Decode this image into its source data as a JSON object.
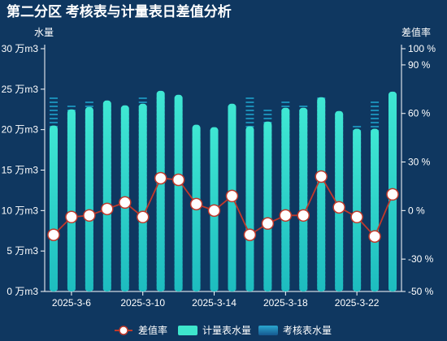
{
  "chart_data": {
    "type": "bar",
    "title": "第二分区 考核表与计量表日差值分析",
    "ylabel_left": "水量",
    "ylabel_right": "差值率",
    "y_left_ticks": [
      "0 万m3",
      "5 万m3",
      "10 万m3",
      "15 万m3",
      "20 万m3",
      "25 万m3",
      "30 万m3"
    ],
    "y_left_range": [
      0,
      30
    ],
    "y_right_ticks": [
      "-50 %",
      "-30 %",
      "0 %",
      "30 %",
      "60 %",
      "90 %",
      "100 %"
    ],
    "y_right_values": [
      -50,
      -30,
      0,
      30,
      60,
      90,
      100
    ],
    "y_right_range": [
      -50,
      100
    ],
    "x_tick_labels": [
      "2025-3-6",
      "2025-3-10",
      "2025-3-14",
      "2025-3-18",
      "2025-3-22"
    ],
    "x_tick_indices": [
      1,
      5,
      9,
      13,
      17
    ],
    "categories": [
      "2025-3-5",
      "2025-3-6",
      "2025-3-7",
      "2025-3-8",
      "2025-3-9",
      "2025-3-10",
      "2025-3-11",
      "2025-3-12",
      "2025-3-13",
      "2025-3-14",
      "2025-3-15",
      "2025-3-16",
      "2025-3-17",
      "2025-3-18",
      "2025-3-19",
      "2025-3-20",
      "2025-3-21",
      "2025-3-22",
      "2025-3-23",
      "2025-3-24"
    ],
    "series": [
      {
        "name": "差值率",
        "type": "line",
        "axis": "right",
        "values": [
          -15,
          -4,
          -3,
          1,
          5,
          -4,
          20,
          19,
          4,
          0,
          9,
          -15,
          -8,
          -3,
          -3,
          21,
          2,
          -4,
          -16,
          10
        ]
      },
      {
        "name": "计量表水量",
        "type": "bar",
        "axis": "left",
        "values": [
          20.5,
          22.5,
          22.8,
          23.6,
          23.0,
          23.2,
          24.8,
          24.3,
          20.6,
          20.3,
          23.2,
          20.4,
          21.0,
          22.7,
          22.7,
          24.0,
          22.3,
          20.1,
          20.1,
          24.7
        ]
      },
      {
        "name": "考核表水量",
        "type": "bar",
        "axis": "left",
        "values": [
          24.2,
          23.0,
          23.5,
          22.8,
          22.0,
          24.2,
          24.2,
          23.0,
          20.1,
          20.0,
          22.5,
          24.2,
          22.5,
          23.5,
          23.0,
          24.0,
          22.0,
          20.6,
          23.6,
          24.2
        ]
      }
    ],
    "colors": {
      "background": "#0f3760",
      "bar_main": "#3ee6cc",
      "bar_main_dark": "#1fb8b8",
      "bar_check": "#1d9bc4",
      "line": "#c0392b",
      "marker_fill": "#ffffff",
      "gridline": "#2a5478",
      "text": "#ffffff"
    },
    "legend_position": "bottom-center",
    "grid": false
  }
}
